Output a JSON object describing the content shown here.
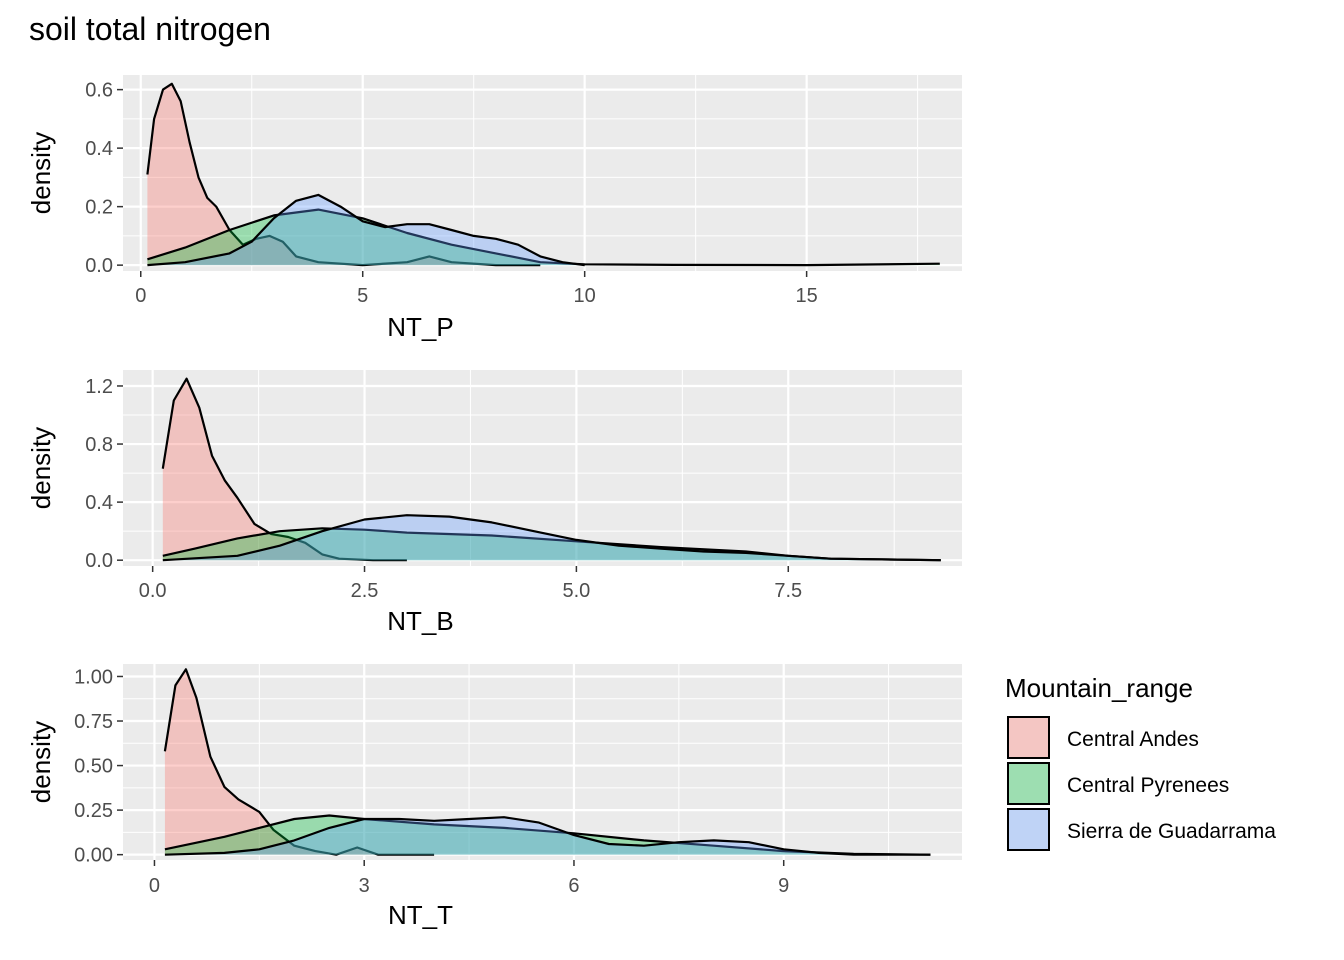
{
  "title": "soil total nitrogen",
  "colors": {
    "panel_bg": "#EBEBEB",
    "grid": "#FFFFFF",
    "tick": "#333333",
    "outline": "#000000"
  },
  "legend": {
    "title": "Mountain_range",
    "position": "right",
    "items": [
      {
        "label": "Central Andes",
        "fill": "#F8766D"
      },
      {
        "label": "Central Pyrenees",
        "fill": "#00BA38"
      },
      {
        "label": "Sierra de Guadarrama",
        "fill": "#619CFF"
      }
    ]
  },
  "chart_data": [
    {
      "type": "area",
      "subtype": "density",
      "xlabel": "NT_P",
      "ylabel": "density",
      "xlim": [
        -0.4,
        18.5
      ],
      "ylim": [
        -0.02,
        0.65
      ],
      "xticks": [
        0,
        5,
        10,
        15
      ],
      "xtick_labels": [
        "0",
        "5",
        "10",
        "15"
      ],
      "yticks": [
        0.0,
        0.2,
        0.4,
        0.6
      ],
      "ytick_labels": [
        "0.0",
        "0.2",
        "0.4",
        "0.6"
      ],
      "grid": true,
      "series": [
        {
          "name": "Central Andes",
          "x": [
            0.15,
            0.3,
            0.5,
            0.7,
            0.9,
            1.1,
            1.3,
            1.5,
            1.7,
            2.0,
            2.3,
            2.6,
            2.9,
            3.2,
            3.5,
            4.0,
            5.0,
            6.0,
            6.5,
            7.0,
            8.0,
            9.0
          ],
          "y": [
            0.31,
            0.5,
            0.6,
            0.62,
            0.56,
            0.42,
            0.3,
            0.23,
            0.2,
            0.12,
            0.07,
            0.09,
            0.1,
            0.08,
            0.03,
            0.01,
            0.0,
            0.01,
            0.03,
            0.01,
            0.0,
            0.0
          ]
        },
        {
          "name": "Central Pyrenees",
          "x": [
            0.15,
            1.0,
            2.0,
            3.0,
            4.0,
            5.0,
            6.0,
            7.0,
            8.0,
            9.0,
            10.0,
            12.0,
            15.0,
            18.0
          ],
          "y": [
            0.02,
            0.06,
            0.12,
            0.17,
            0.19,
            0.16,
            0.11,
            0.07,
            0.04,
            0.01,
            0.003,
            0.001,
            0.0,
            0.005
          ]
        },
        {
          "name": "Sierra de Guadarrama",
          "x": [
            0.15,
            1.0,
            2.0,
            2.5,
            3.0,
            3.5,
            4.0,
            4.5,
            5.0,
            5.5,
            6.0,
            6.5,
            7.0,
            7.5,
            8.0,
            8.5,
            9.0,
            9.5,
            10.0
          ],
          "y": [
            0.0,
            0.01,
            0.04,
            0.08,
            0.16,
            0.22,
            0.24,
            0.2,
            0.15,
            0.13,
            0.14,
            0.14,
            0.12,
            0.1,
            0.09,
            0.07,
            0.03,
            0.01,
            0.0
          ]
        }
      ]
    },
    {
      "type": "area",
      "subtype": "density",
      "xlabel": "NT_B",
      "ylabel": "density",
      "xlim": [
        -0.35,
        9.55
      ],
      "ylim": [
        -0.04,
        1.31
      ],
      "xticks": [
        0,
        2.5,
        5,
        7.5
      ],
      "xtick_labels": [
        "0.0",
        "2.5",
        "5.0",
        "7.5"
      ],
      "yticks": [
        0.0,
        0.4,
        0.8,
        1.2
      ],
      "ytick_labels": [
        "0.0",
        "0.4",
        "0.8",
        "1.2"
      ],
      "grid": true,
      "series": [
        {
          "name": "Central Andes",
          "x": [
            0.12,
            0.25,
            0.4,
            0.55,
            0.7,
            0.85,
            1.0,
            1.2,
            1.4,
            1.6,
            1.8,
            2.0,
            2.2,
            2.6,
            3.0
          ],
          "y": [
            0.63,
            1.1,
            1.25,
            1.05,
            0.72,
            0.55,
            0.43,
            0.25,
            0.18,
            0.16,
            0.12,
            0.04,
            0.01,
            0.0,
            0.0
          ]
        },
        {
          "name": "Central Pyrenees",
          "x": [
            0.12,
            0.5,
            1.0,
            1.5,
            2.0,
            2.5,
            3.0,
            4.0,
            5.0,
            6.0,
            7.0,
            7.5,
            8.0,
            9.3
          ],
          "y": [
            0.03,
            0.08,
            0.15,
            0.2,
            0.22,
            0.21,
            0.19,
            0.17,
            0.13,
            0.09,
            0.06,
            0.03,
            0.01,
            0.0
          ]
        },
        {
          "name": "Sierra de Guadarrama",
          "x": [
            0.12,
            1.0,
            1.5,
            2.0,
            2.5,
            3.0,
            3.5,
            4.0,
            4.5,
            5.0,
            5.5,
            6.0,
            6.5,
            7.0,
            7.5,
            8.0,
            9.3
          ],
          "y": [
            0.0,
            0.03,
            0.1,
            0.2,
            0.28,
            0.31,
            0.3,
            0.26,
            0.2,
            0.14,
            0.1,
            0.08,
            0.06,
            0.05,
            0.03,
            0.01,
            0.0
          ]
        }
      ]
    },
    {
      "type": "area",
      "subtype": "density",
      "xlabel": "NT_T",
      "ylabel": "density",
      "xlim": [
        -0.45,
        11.55
      ],
      "ylim": [
        -0.03,
        1.07
      ],
      "xticks": [
        0,
        3,
        6,
        9
      ],
      "xtick_labels": [
        "0",
        "3",
        "6",
        "9"
      ],
      "yticks": [
        0.0,
        0.25,
        0.5,
        0.75,
        1.0
      ],
      "ytick_labels": [
        "0.00",
        "0.25",
        "0.50",
        "0.75",
        "1.00"
      ],
      "grid": true,
      "series": [
        {
          "name": "Central Andes",
          "x": [
            0.15,
            0.3,
            0.45,
            0.6,
            0.8,
            1.0,
            1.2,
            1.5,
            1.7,
            2.0,
            2.3,
            2.6,
            2.9,
            3.2,
            3.5,
            4.0
          ],
          "y": [
            0.58,
            0.95,
            1.04,
            0.88,
            0.55,
            0.38,
            0.31,
            0.24,
            0.14,
            0.05,
            0.02,
            0.0,
            0.04,
            0.0,
            0.0,
            0.0
          ]
        },
        {
          "name": "Central Pyrenees",
          "x": [
            0.15,
            1.0,
            2.0,
            2.5,
            3.0,
            4.0,
            5.0,
            6.0,
            7.0,
            8.0,
            9.0,
            10.0,
            11.1
          ],
          "y": [
            0.03,
            0.1,
            0.2,
            0.22,
            0.2,
            0.17,
            0.15,
            0.12,
            0.08,
            0.05,
            0.02,
            0.005,
            0.0
          ]
        },
        {
          "name": "Sierra de Guadarrama",
          "x": [
            0.15,
            1.0,
            1.5,
            2.0,
            2.5,
            3.0,
            3.5,
            4.0,
            4.5,
            5.0,
            5.5,
            6.0,
            6.5,
            7.0,
            7.5,
            8.0,
            8.5,
            9.0,
            9.5,
            10.0,
            11.1
          ],
          "y": [
            0.0,
            0.01,
            0.03,
            0.08,
            0.15,
            0.2,
            0.2,
            0.19,
            0.2,
            0.21,
            0.18,
            0.11,
            0.06,
            0.05,
            0.07,
            0.08,
            0.07,
            0.03,
            0.01,
            0.0,
            0.0
          ]
        }
      ]
    }
  ]
}
